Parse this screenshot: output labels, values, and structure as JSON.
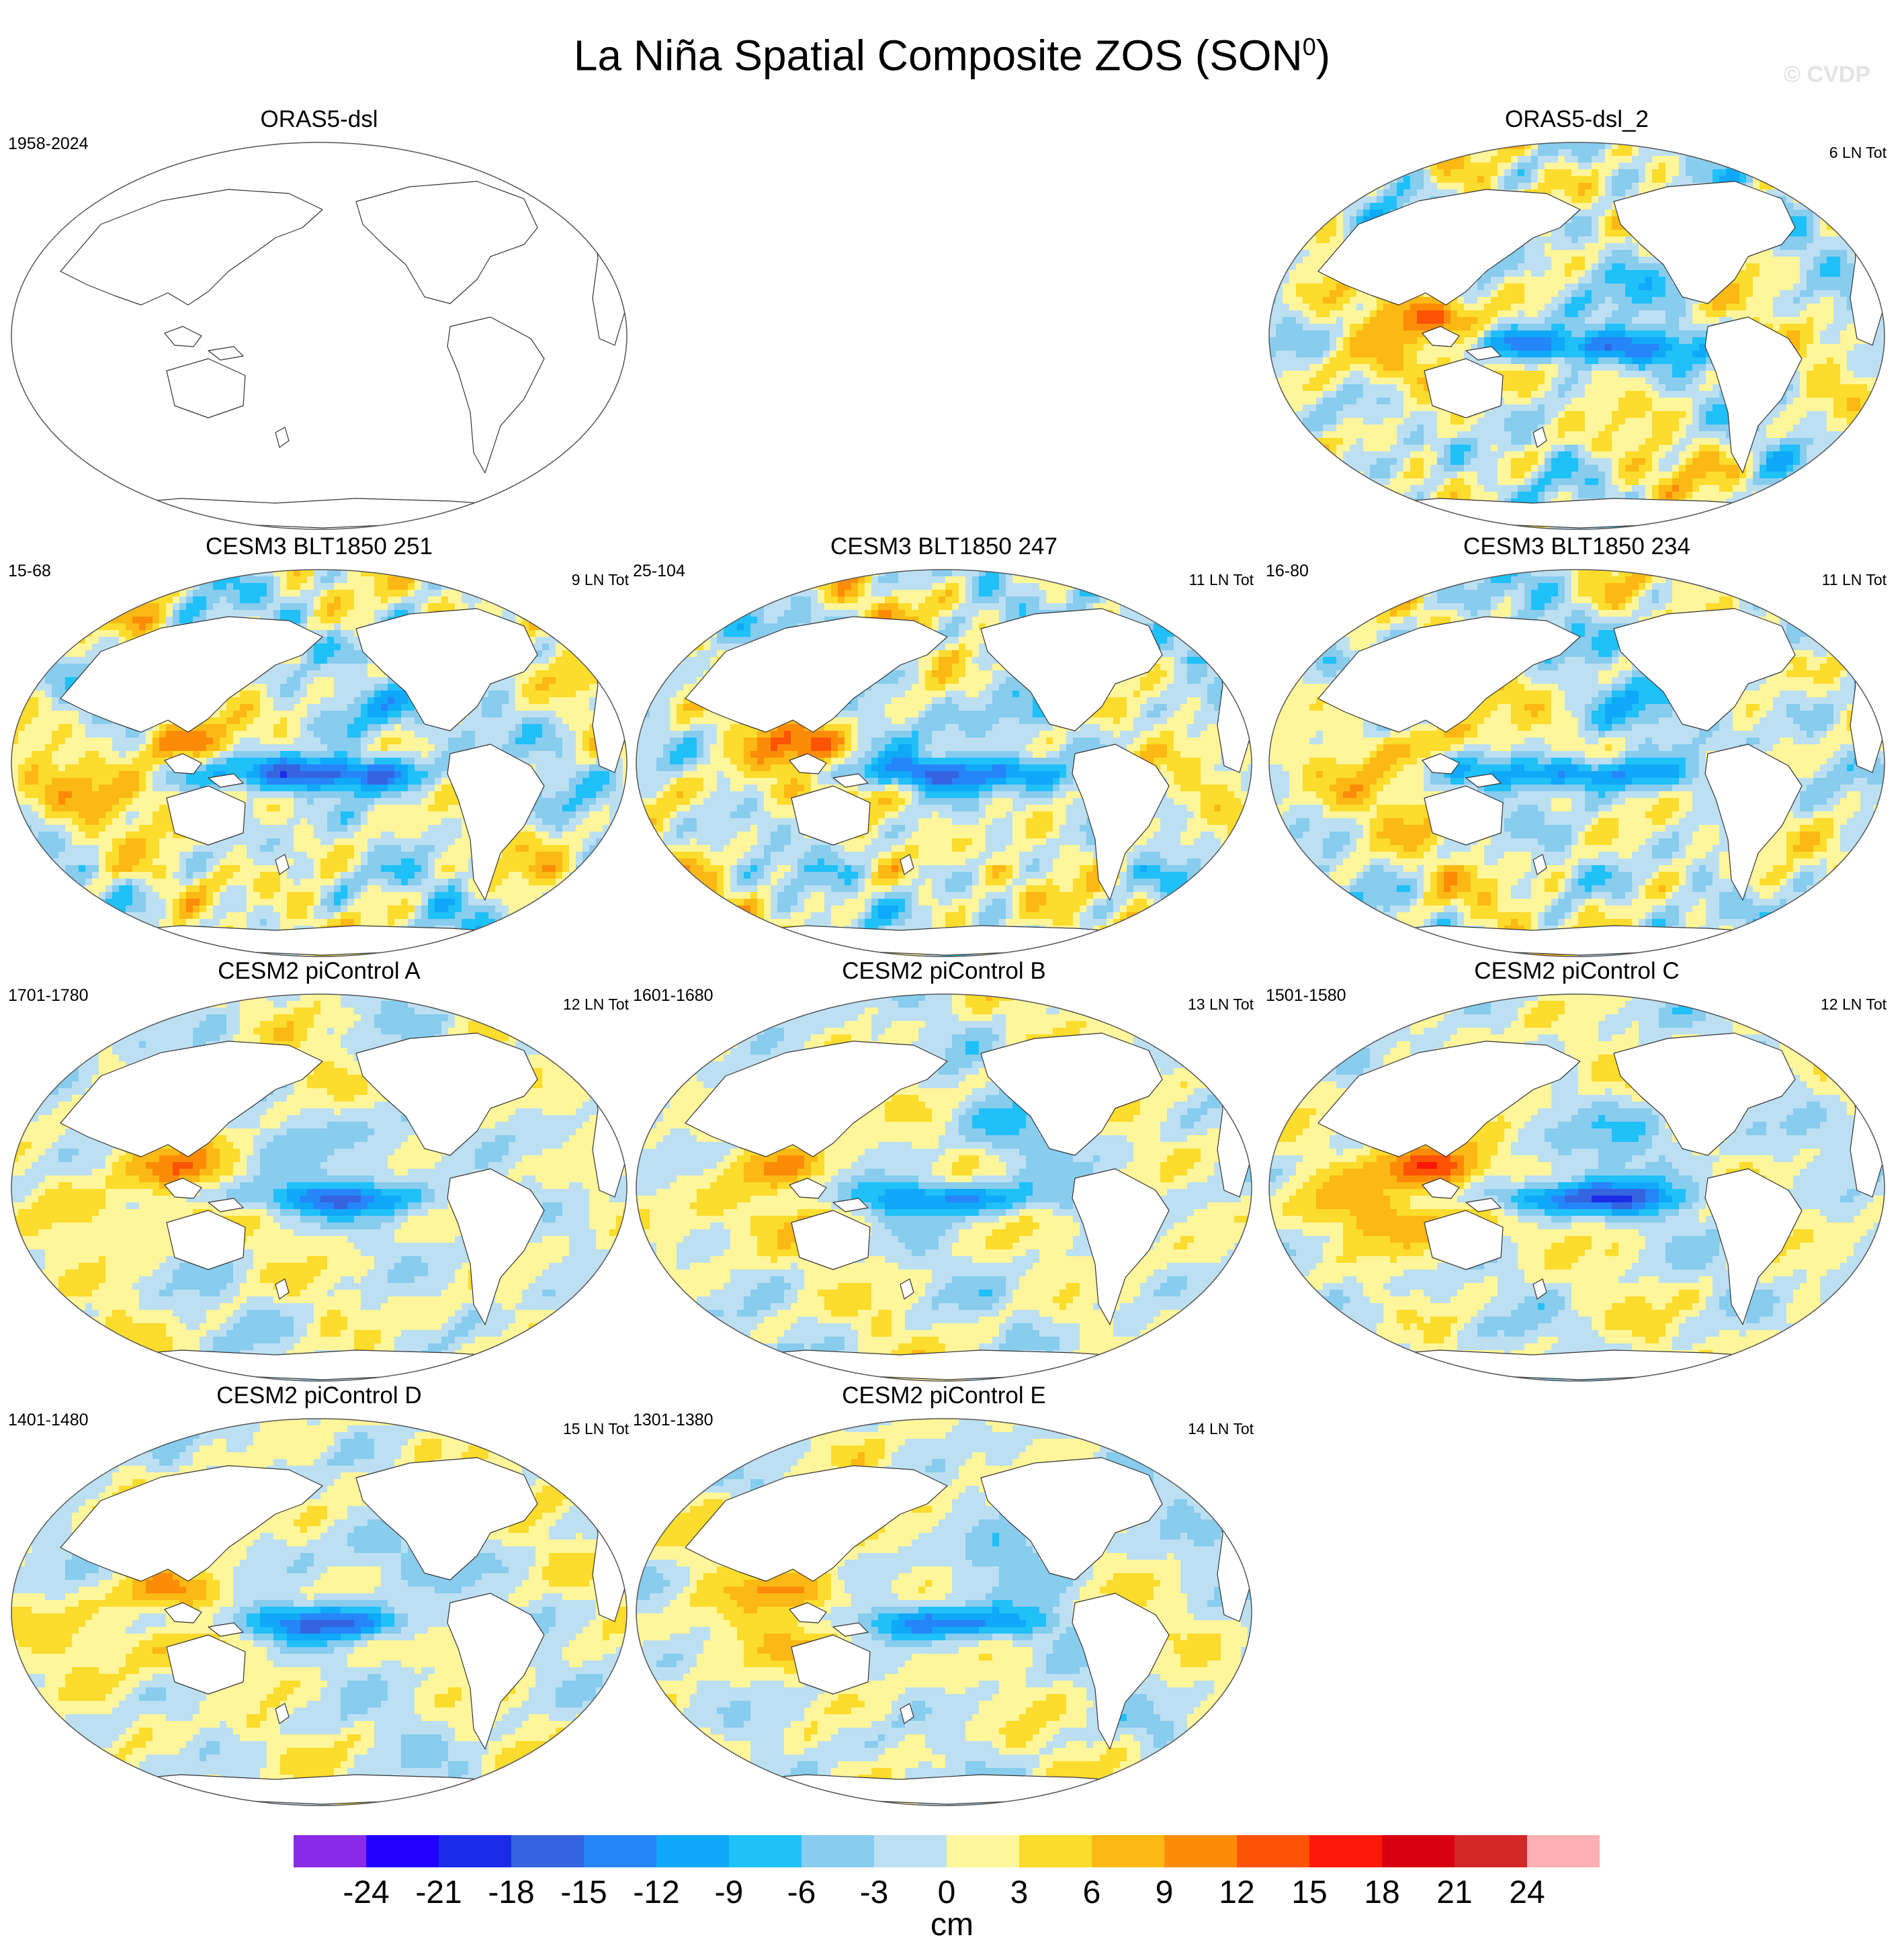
{
  "title": "La Niña Spatial Composite ZOS (SON",
  "title_superscript": "0",
  "title_suffix": ")",
  "watermark": "© CVDP",
  "panels": [
    {
      "name": "ORAS5-dsl",
      "years": "1958-2024",
      "count": "",
      "filled": false
    },
    {
      "name": "ORAS5-dsl_2",
      "years": "",
      "count": "6 LN Tot",
      "filled": true,
      "east_amp": 13,
      "west_amp": 11,
      "noise": 0.9
    },
    {
      "name": "CESM3 BLT1850 251",
      "years": "15-68",
      "count": "9 LN Tot",
      "filled": true,
      "east_amp": 16,
      "west_amp": 11,
      "noise": 0.9
    },
    {
      "name": "CESM3 BLT1850 247",
      "years": "25-104",
      "count": "11 LN Tot",
      "filled": true,
      "east_amp": 13,
      "west_amp": 10,
      "noise": 0.9
    },
    {
      "name": "CESM3 BLT1850 234",
      "years": "16-80",
      "count": "11 LN Tot",
      "filled": true,
      "east_amp": 12,
      "west_amp": 8,
      "noise": 0.8
    },
    {
      "name": "CESM2 piControl A",
      "years": "1701-1780",
      "count": "12 LN Tot",
      "filled": true,
      "east_amp": 11,
      "west_amp": 10,
      "noise": 0.35
    },
    {
      "name": "CESM2 piControl B",
      "years": "1601-1680",
      "count": "13 LN Tot",
      "filled": true,
      "east_amp": 11,
      "west_amp": 9,
      "noise": 0.35
    },
    {
      "name": "CESM2 piControl C",
      "years": "1501-1580",
      "count": "12 LN Tot",
      "filled": true,
      "east_amp": 14,
      "west_amp": 16,
      "noise": 0.35
    },
    {
      "name": "CESM2 piControl D",
      "years": "1401-1480",
      "count": "15 LN Tot",
      "filled": true,
      "east_amp": 12,
      "west_amp": 10,
      "noise": 0.35
    },
    {
      "name": "CESM2 piControl E",
      "years": "1301-1380",
      "count": "14 LN Tot",
      "filled": true,
      "east_amp": 11,
      "west_amp": 10,
      "noise": 0.35
    }
  ],
  "colorbar": {
    "units": "cm",
    "levels": [
      "-24",
      "-21",
      "-18",
      "-15",
      "-12",
      "-9",
      "-6",
      "-3",
      "0",
      "3",
      "6",
      "9",
      "12",
      "15",
      "18",
      "21",
      "24"
    ],
    "colors": [
      "#8a2be8",
      "#2100ff",
      "#1b2ce8",
      "#3464e0",
      "#2685f8",
      "#10a8f8",
      "#20c0f8",
      "#88ccee",
      "#bce0f2",
      "#fff59a",
      "#fcdc2c",
      "#fcb814",
      "#fc8c08",
      "#fc5404",
      "#fc1808",
      "#d80010",
      "#d42828",
      "#fcb0b4"
    ]
  }
}
